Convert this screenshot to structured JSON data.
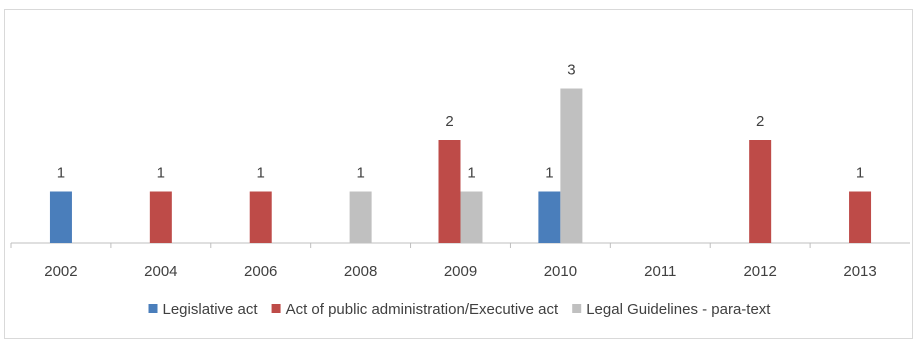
{
  "chart_data": {
    "type": "bar",
    "title": "",
    "xlabel": "",
    "ylabel": "",
    "ylim": [
      0,
      3
    ],
    "grid": false,
    "legend_position": "bottom",
    "categories": [
      "2002",
      "2004",
      "2006",
      "2008",
      "2009",
      "2010",
      "2011",
      "2012",
      "2013"
    ],
    "series": [
      {
        "name": "Legislative act",
        "color": "#4a7ebb",
        "values": [
          1,
          null,
          null,
          null,
          null,
          1,
          null,
          null,
          null
        ]
      },
      {
        "name": "Act of public administration/Executive act",
        "color": "#be4b48",
        "values": [
          null,
          1,
          1,
          null,
          2,
          null,
          null,
          2,
          1
        ]
      },
      {
        "name": "Legal Guidelines - para-text",
        "color": "#c0c0c0",
        "values": [
          null,
          null,
          null,
          1,
          1,
          3,
          null,
          null,
          null
        ]
      }
    ]
  }
}
